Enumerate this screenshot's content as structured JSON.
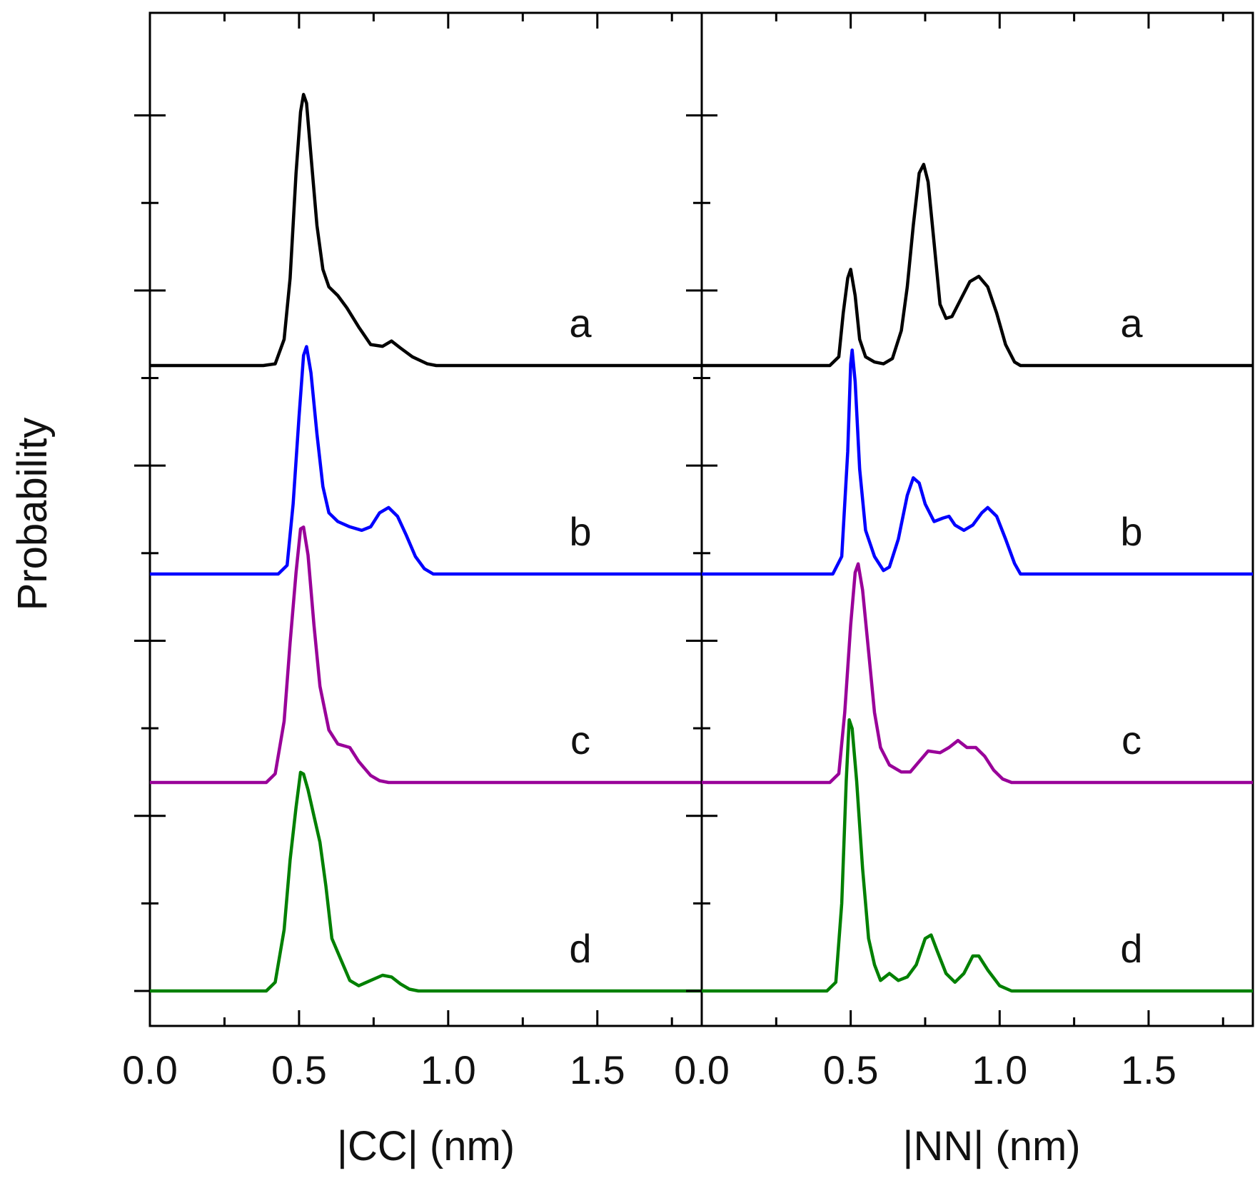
{
  "chart_data": {
    "type": "line",
    "ylabel": "Probability",
    "y_ticks_visible": false,
    "y_major_ticks": 5,
    "panels": [
      {
        "xlabel": "|CC| (nm)",
        "xlim": [
          0.0,
          1.85
        ],
        "x_ticks": [
          0.0,
          0.5,
          1.0,
          1.5
        ],
        "tick_labels": [
          "0.0",
          "0.5",
          "1.0",
          "1.5"
        ],
        "series": [
          {
            "name": "a",
            "label": "a",
            "color": "#000000",
            "baseline": 3.0,
            "points": [
              [
                0.0,
                0
              ],
              [
                0.38,
                0
              ],
              [
                0.42,
                0.01
              ],
              [
                0.45,
                0.15
              ],
              [
                0.47,
                0.5
              ],
              [
                0.49,
                1.1
              ],
              [
                0.505,
                1.45
              ],
              [
                0.515,
                1.55
              ],
              [
                0.525,
                1.5
              ],
              [
                0.54,
                1.2
              ],
              [
                0.56,
                0.8
              ],
              [
                0.58,
                0.55
              ],
              [
                0.6,
                0.45
              ],
              [
                0.63,
                0.4
              ],
              [
                0.66,
                0.33
              ],
              [
                0.7,
                0.22
              ],
              [
                0.74,
                0.12
              ],
              [
                0.78,
                0.11
              ],
              [
                0.81,
                0.14
              ],
              [
                0.84,
                0.1
              ],
              [
                0.88,
                0.05
              ],
              [
                0.93,
                0.01
              ],
              [
                0.96,
                0
              ],
              [
                1.85,
                0
              ]
            ]
          },
          {
            "name": "b",
            "label": "b",
            "color": "#0000ff",
            "baseline": 2.0,
            "points": [
              [
                0.0,
                0
              ],
              [
                0.43,
                0
              ],
              [
                0.46,
                0.05
              ],
              [
                0.48,
                0.4
              ],
              [
                0.5,
                0.9
              ],
              [
                0.515,
                1.25
              ],
              [
                0.525,
                1.3
              ],
              [
                0.54,
                1.15
              ],
              [
                0.56,
                0.8
              ],
              [
                0.58,
                0.5
              ],
              [
                0.6,
                0.35
              ],
              [
                0.63,
                0.3
              ],
              [
                0.67,
                0.27
              ],
              [
                0.71,
                0.25
              ],
              [
                0.74,
                0.27
              ],
              [
                0.77,
                0.35
              ],
              [
                0.8,
                0.38
              ],
              [
                0.83,
                0.33
              ],
              [
                0.86,
                0.22
              ],
              [
                0.89,
                0.1
              ],
              [
                0.92,
                0.03
              ],
              [
                0.95,
                0
              ],
              [
                1.85,
                0
              ]
            ]
          },
          {
            "name": "c",
            "label": "c",
            "color": "#990099",
            "baseline": 1.0,
            "points": [
              [
                0.0,
                0
              ],
              [
                0.39,
                0
              ],
              [
                0.42,
                0.05
              ],
              [
                0.45,
                0.35
              ],
              [
                0.47,
                0.8
              ],
              [
                0.49,
                1.2
              ],
              [
                0.505,
                1.45
              ],
              [
                0.515,
                1.46
              ],
              [
                0.53,
                1.3
              ],
              [
                0.55,
                0.9
              ],
              [
                0.57,
                0.55
              ],
              [
                0.6,
                0.3
              ],
              [
                0.63,
                0.22
              ],
              [
                0.67,
                0.2
              ],
              [
                0.7,
                0.12
              ],
              [
                0.74,
                0.04
              ],
              [
                0.77,
                0.01
              ],
              [
                0.8,
                0
              ],
              [
                1.85,
                0
              ]
            ]
          },
          {
            "name": "d",
            "label": "d",
            "color": "#008000",
            "baseline": 0.0,
            "points": [
              [
                0.0,
                0
              ],
              [
                0.39,
                0
              ],
              [
                0.42,
                0.05
              ],
              [
                0.45,
                0.35
              ],
              [
                0.47,
                0.75
              ],
              [
                0.49,
                1.05
              ],
              [
                0.505,
                1.25
              ],
              [
                0.515,
                1.24
              ],
              [
                0.53,
                1.15
              ],
              [
                0.55,
                1.0
              ],
              [
                0.57,
                0.85
              ],
              [
                0.59,
                0.6
              ],
              [
                0.61,
                0.3
              ],
              [
                0.64,
                0.18
              ],
              [
                0.67,
                0.06
              ],
              [
                0.7,
                0.03
              ],
              [
                0.74,
                0.06
              ],
              [
                0.78,
                0.09
              ],
              [
                0.81,
                0.08
              ],
              [
                0.84,
                0.04
              ],
              [
                0.87,
                0.01
              ],
              [
                0.9,
                0
              ],
              [
                1.85,
                0
              ]
            ]
          }
        ]
      },
      {
        "xlabel": "|NN| (nm)",
        "xlim": [
          0.0,
          1.85
        ],
        "x_ticks": [
          0.0,
          0.5,
          1.0,
          1.5
        ],
        "tick_labels": [
          "0.0",
          "0.5",
          "1.0",
          "1.5"
        ],
        "series": [
          {
            "name": "a",
            "label": "a",
            "color": "#000000",
            "baseline": 3.0,
            "points": [
              [
                0.0,
                0
              ],
              [
                0.43,
                0
              ],
              [
                0.46,
                0.05
              ],
              [
                0.475,
                0.3
              ],
              [
                0.49,
                0.5
              ],
              [
                0.5,
                0.55
              ],
              [
                0.515,
                0.4
              ],
              [
                0.53,
                0.15
              ],
              [
                0.55,
                0.05
              ],
              [
                0.58,
                0.02
              ],
              [
                0.61,
                0.01
              ],
              [
                0.64,
                0.04
              ],
              [
                0.67,
                0.2
              ],
              [
                0.69,
                0.45
              ],
              [
                0.71,
                0.8
              ],
              [
                0.73,
                1.1
              ],
              [
                0.745,
                1.15
              ],
              [
                0.76,
                1.05
              ],
              [
                0.78,
                0.7
              ],
              [
                0.8,
                0.35
              ],
              [
                0.82,
                0.27
              ],
              [
                0.84,
                0.28
              ],
              [
                0.87,
                0.38
              ],
              [
                0.9,
                0.48
              ],
              [
                0.93,
                0.51
              ],
              [
                0.96,
                0.45
              ],
              [
                0.99,
                0.3
              ],
              [
                1.02,
                0.12
              ],
              [
                1.05,
                0.02
              ],
              [
                1.07,
                0
              ],
              [
                1.85,
                0
              ]
            ]
          },
          {
            "name": "b",
            "label": "b",
            "color": "#0000ff",
            "baseline": 2.0,
            "points": [
              [
                0.0,
                0
              ],
              [
                0.44,
                0
              ],
              [
                0.47,
                0.1
              ],
              [
                0.49,
                0.7
              ],
              [
                0.5,
                1.2
              ],
              [
                0.505,
                1.28
              ],
              [
                0.515,
                1.1
              ],
              [
                0.53,
                0.6
              ],
              [
                0.55,
                0.25
              ],
              [
                0.58,
                0.1
              ],
              [
                0.61,
                0.02
              ],
              [
                0.63,
                0.04
              ],
              [
                0.66,
                0.2
              ],
              [
                0.69,
                0.45
              ],
              [
                0.71,
                0.55
              ],
              [
                0.73,
                0.52
              ],
              [
                0.75,
                0.4
              ],
              [
                0.78,
                0.3
              ],
              [
                0.81,
                0.32
              ],
              [
                0.83,
                0.33
              ],
              [
                0.85,
                0.28
              ],
              [
                0.88,
                0.25
              ],
              [
                0.91,
                0.28
              ],
              [
                0.94,
                0.35
              ],
              [
                0.96,
                0.38
              ],
              [
                0.99,
                0.33
              ],
              [
                1.02,
                0.2
              ],
              [
                1.05,
                0.06
              ],
              [
                1.07,
                0
              ],
              [
                1.85,
                0
              ]
            ]
          },
          {
            "name": "c",
            "label": "c",
            "color": "#990099",
            "baseline": 1.0,
            "points": [
              [
                0.0,
                0
              ],
              [
                0.43,
                0
              ],
              [
                0.46,
                0.05
              ],
              [
                0.48,
                0.4
              ],
              [
                0.5,
                0.9
              ],
              [
                0.515,
                1.2
              ],
              [
                0.525,
                1.25
              ],
              [
                0.54,
                1.1
              ],
              [
                0.56,
                0.75
              ],
              [
                0.58,
                0.4
              ],
              [
                0.6,
                0.2
              ],
              [
                0.63,
                0.1
              ],
              [
                0.67,
                0.06
              ],
              [
                0.7,
                0.06
              ],
              [
                0.73,
                0.12
              ],
              [
                0.76,
                0.18
              ],
              [
                0.8,
                0.17
              ],
              [
                0.83,
                0.2
              ],
              [
                0.86,
                0.24
              ],
              [
                0.89,
                0.2
              ],
              [
                0.92,
                0.2
              ],
              [
                0.95,
                0.15
              ],
              [
                0.98,
                0.07
              ],
              [
                1.01,
                0.02
              ],
              [
                1.04,
                0
              ],
              [
                1.85,
                0
              ]
            ]
          },
          {
            "name": "d",
            "label": "d",
            "color": "#008000",
            "baseline": 0.0,
            "points": [
              [
                0.0,
                0
              ],
              [
                0.42,
                0
              ],
              [
                0.45,
                0.05
              ],
              [
                0.47,
                0.5
              ],
              [
                0.485,
                1.2
              ],
              [
                0.495,
                1.55
              ],
              [
                0.505,
                1.5
              ],
              [
                0.52,
                1.2
              ],
              [
                0.54,
                0.7
              ],
              [
                0.56,
                0.3
              ],
              [
                0.58,
                0.15
              ],
              [
                0.6,
                0.06
              ],
              [
                0.63,
                0.1
              ],
              [
                0.66,
                0.06
              ],
              [
                0.69,
                0.08
              ],
              [
                0.72,
                0.15
              ],
              [
                0.75,
                0.3
              ],
              [
                0.77,
                0.32
              ],
              [
                0.79,
                0.23
              ],
              [
                0.82,
                0.1
              ],
              [
                0.85,
                0.05
              ],
              [
                0.88,
                0.1
              ],
              [
                0.91,
                0.2
              ],
              [
                0.93,
                0.2
              ],
              [
                0.96,
                0.12
              ],
              [
                1.0,
                0.03
              ],
              [
                1.04,
                0
              ],
              [
                1.85,
                0
              ]
            ]
          }
        ]
      }
    ]
  }
}
